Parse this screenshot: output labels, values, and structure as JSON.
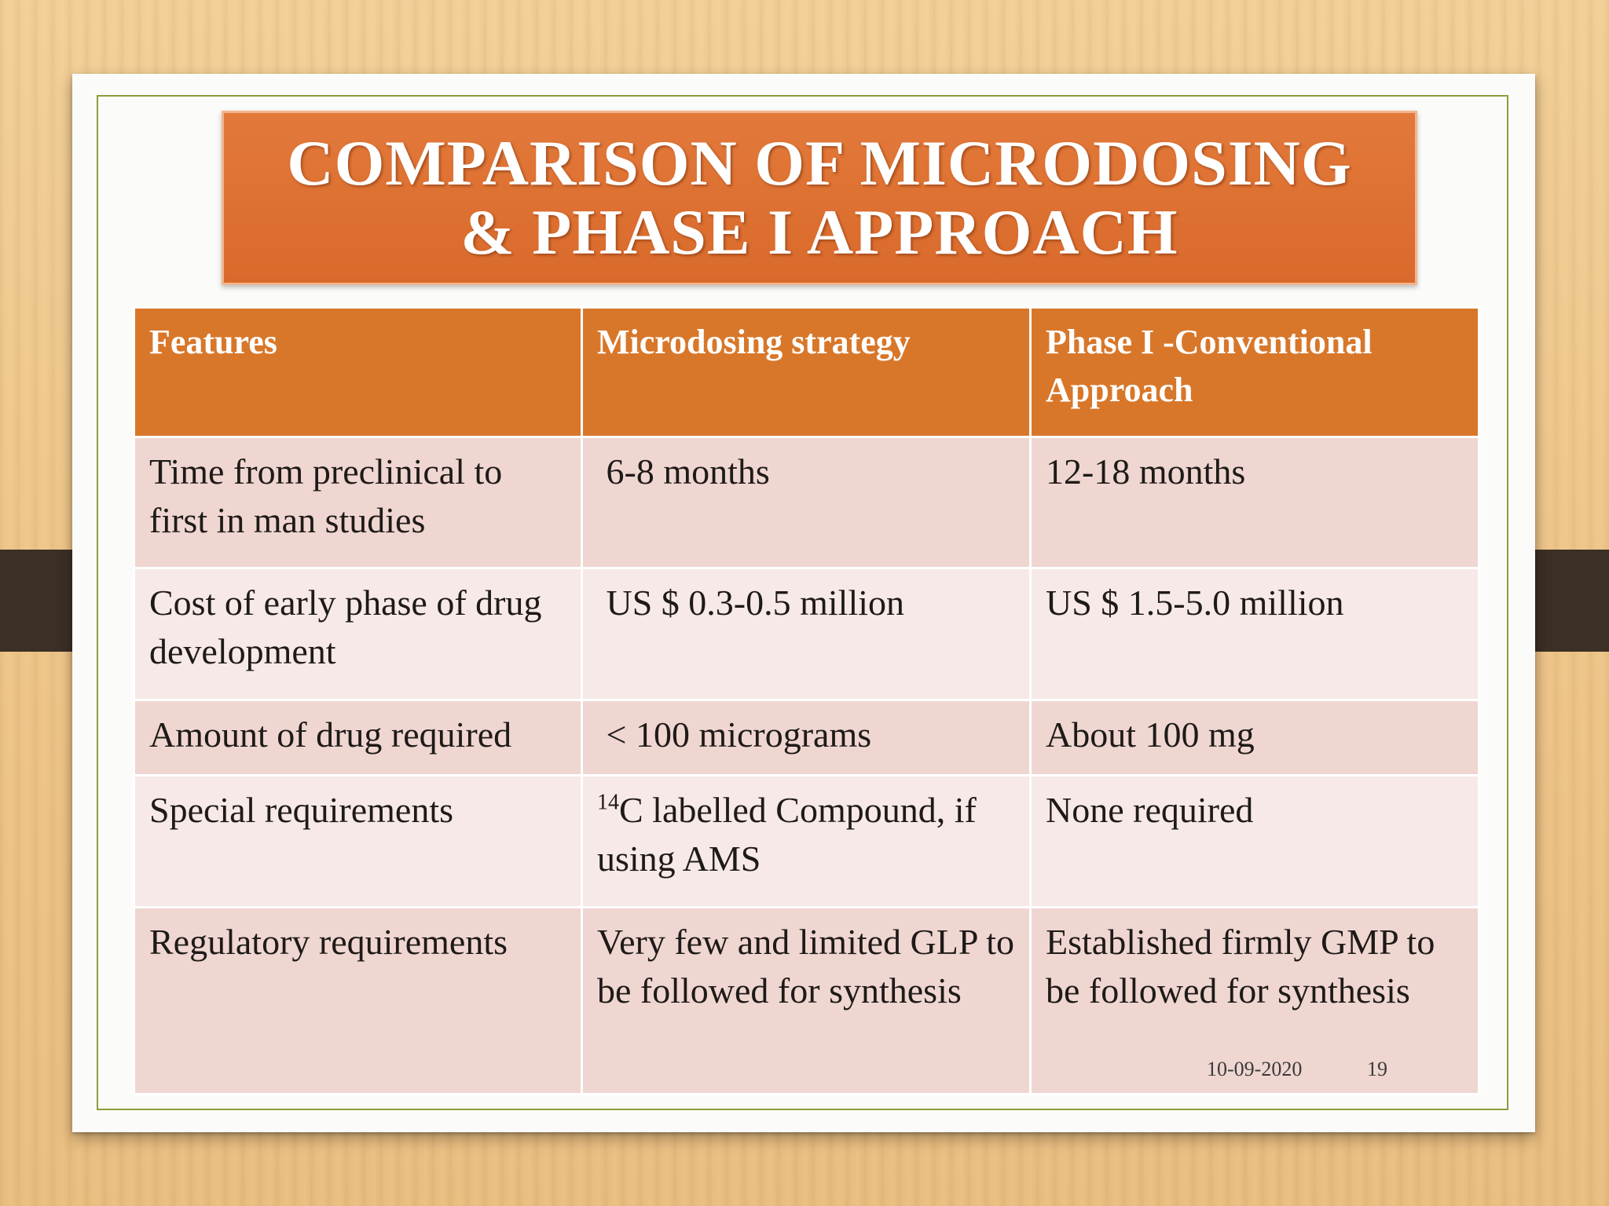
{
  "slide": {
    "title_line1": "COMPARISON OF MICRODOSING",
    "title_line2": "& PHASE I APPROACH",
    "date": "10-09-2020",
    "page_number": "19"
  },
  "table": {
    "headers": [
      "Features",
      "Microdosing strategy",
      "Phase I -Conventional Approach"
    ],
    "rows": [
      [
        "Time from preclinical to first in man studies",
        " 6-8 months",
        "12-18 months"
      ],
      [
        "Cost of early phase of drug development",
        " US $ 0.3-0.5 million",
        "US $ 1.5-5.0 million"
      ],
      [
        "Amount of drug required",
        " < 100 micrograms",
        "About 100 mg"
      ],
      [
        "Special requirements",
        "C labelled Compound, if using AMS",
        "None required"
      ],
      [
        "Regulatory requirements",
        "Very few and limited GLP to be followed for synthesis",
        "Established firmly GMP to be followed for synthesis"
      ]
    ],
    "isotope_superscript": "14"
  },
  "colors": {
    "title_bg": "#d96a2b",
    "header_bg": "#d8772a",
    "row_odd": "#efd6d1",
    "row_even": "#f6e9e7",
    "border_green": "#8a9d3d"
  }
}
